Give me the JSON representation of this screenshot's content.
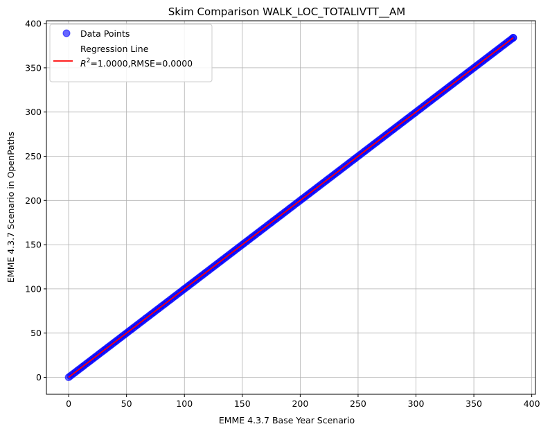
{
  "chart_data": {
    "type": "scatter",
    "title": "Skim Comparison WALK_LOC_TOTALIVTT__AM",
    "xlabel": "EMME 4.3.7 Base Year Scenario",
    "ylabel": "EMME 4.3.7 Scenario in OpenPaths",
    "xlim": [
      -19.2,
      403.2
    ],
    "ylim": [
      -19.2,
      403.2
    ],
    "x_ticks": [
      0,
      50,
      100,
      150,
      200,
      250,
      300,
      350,
      400
    ],
    "y_ticks": [
      0,
      50,
      100,
      150,
      200,
      250,
      300,
      350,
      400
    ],
    "x_tick_labels": [
      "0",
      "50",
      "100",
      "150",
      "200",
      "250",
      "300",
      "350",
      "400"
    ],
    "y_tick_labels": [
      "0",
      "50",
      "100",
      "150",
      "200",
      "250",
      "300",
      "350",
      "400"
    ],
    "grid": true,
    "legend_position": "top-left",
    "series": [
      {
        "name": "Data Points",
        "kind": "scatter",
        "color": "#0000ff",
        "x_range": [
          0,
          384
        ],
        "relation": "y = x"
      },
      {
        "name": "Regression Line",
        "kind": "line",
        "color": "#ff0000",
        "slope": 1.0,
        "intercept": 0.0,
        "x": [
          0,
          384
        ],
        "y": [
          0,
          384
        ]
      }
    ],
    "annotations": {
      "r2_label": "R",
      "r2_sup": "2",
      "stats": "=1.0000,RMSE=0.0000"
    }
  }
}
